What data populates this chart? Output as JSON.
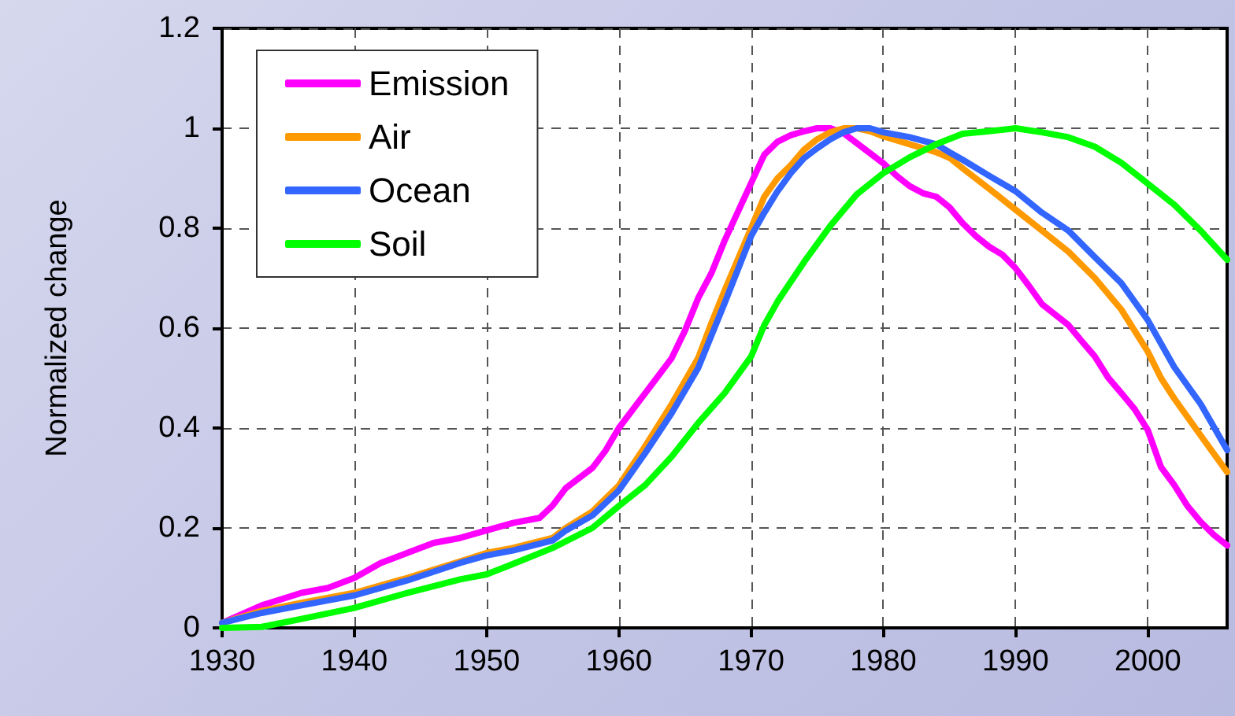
{
  "chart_data": {
    "type": "line",
    "ylabel": "Normalized change",
    "xlim": [
      1930,
      2006
    ],
    "xticks": [
      1930,
      1940,
      1950,
      1960,
      1970,
      1980,
      1990,
      2000
    ],
    "ylim": [
      0,
      1.2
    ],
    "yticks": [
      0,
      0.2,
      0.4,
      0.6,
      0.8,
      1,
      1.2
    ],
    "grid": true,
    "legend": "top left",
    "marker": "none",
    "line_style": "solid",
    "series": [
      {
        "name": "Emission",
        "color": "#ff00ff",
        "x": [
          1930,
          1933,
          1936,
          1938,
          1940,
          1942,
          1944,
          1946,
          1948,
          1950,
          1952,
          1954,
          1955,
          1956,
          1958,
          1959,
          1960,
          1962,
          1964,
          1965,
          1966,
          1967,
          1968,
          1970,
          1971,
          1972,
          1973,
          1974,
          1975,
          1976,
          1977,
          1978,
          1979,
          1980,
          1981,
          1982,
          1983,
          1984,
          1985,
          1986,
          1987,
          1988,
          1989,
          1990,
          1991,
          1992,
          1993,
          1994,
          1995,
          1996,
          1997,
          1998,
          1999,
          2000,
          2001,
          2002,
          2003,
          2004,
          2005,
          2006
        ],
        "values": [
          0.01,
          0.045,
          0.07,
          0.08,
          0.1,
          0.13,
          0.15,
          0.17,
          0.18,
          0.195,
          0.21,
          0.22,
          0.245,
          0.28,
          0.32,
          0.355,
          0.4,
          0.47,
          0.54,
          0.595,
          0.66,
          0.71,
          0.775,
          0.89,
          0.947,
          0.973,
          0.986,
          0.994,
          1,
          1,
          0.99,
          0.97,
          0.95,
          0.93,
          0.905,
          0.884,
          0.87,
          0.863,
          0.842,
          0.81,
          0.784,
          0.763,
          0.747,
          0.72,
          0.685,
          0.648,
          0.627,
          0.606,
          0.574,
          0.543,
          0.501,
          0.47,
          0.438,
          0.396,
          0.322,
          0.286,
          0.244,
          0.212,
          0.186,
          0.165
        ]
      },
      {
        "name": "Air",
        "color": "#ff9900",
        "x": [
          1930,
          1933,
          1936,
          1940,
          1944,
          1948,
          1950,
          1952,
          1955,
          1956,
          1958,
          1960,
          1962,
          1964,
          1966,
          1967,
          1968,
          1970,
          1971,
          1972,
          1973,
          1974,
          1975,
          1976,
          1977,
          1978,
          1979,
          1980,
          1982,
          1984,
          1985,
          1986,
          1988,
          1990,
          1992,
          1994,
          1996,
          1998,
          2000,
          2001,
          2002,
          2004,
          2006
        ],
        "values": [
          0.01,
          0.034,
          0.05,
          0.07,
          0.1,
          0.133,
          0.15,
          0.16,
          0.18,
          0.2,
          0.233,
          0.285,
          0.364,
          0.448,
          0.54,
          0.61,
          0.675,
          0.8,
          0.863,
          0.9,
          0.926,
          0.957,
          0.978,
          0.992,
          1,
          1,
          0.994,
          0.984,
          0.968,
          0.952,
          0.941,
          0.92,
          0.879,
          0.837,
          0.795,
          0.753,
          0.7,
          0.637,
          0.553,
          0.5,
          0.459,
          0.385,
          0.312
        ]
      },
      {
        "name": "Ocean",
        "color": "#3366ff",
        "x": [
          1930,
          1933,
          1936,
          1940,
          1944,
          1948,
          1950,
          1952,
          1955,
          1956,
          1958,
          1960,
          1962,
          1964,
          1966,
          1968,
          1970,
          1971,
          1972,
          1973,
          1974,
          1975,
          1976,
          1977,
          1978,
          1979,
          1980,
          1982,
          1984,
          1985,
          1986,
          1988,
          1990,
          1992,
          1994,
          1996,
          1998,
          2000,
          2002,
          2004,
          2006
        ],
        "values": [
          0.01,
          0.03,
          0.045,
          0.065,
          0.095,
          0.13,
          0.145,
          0.155,
          0.175,
          0.195,
          0.225,
          0.275,
          0.35,
          0.43,
          0.52,
          0.65,
          0.784,
          0.831,
          0.874,
          0.91,
          0.94,
          0.96,
          0.978,
          0.992,
          1,
          1,
          0.992,
          0.982,
          0.968,
          0.952,
          0.937,
          0.905,
          0.874,
          0.831,
          0.795,
          0.742,
          0.69,
          0.616,
          0.522,
          0.448,
          0.356
        ]
      },
      {
        "name": "Soil",
        "color": "#00ff00",
        "x": [
          1930,
          1933,
          1936,
          1940,
          1944,
          1948,
          1950,
          1952,
          1955,
          1958,
          1960,
          1962,
          1964,
          1966,
          1968,
          1970,
          1971,
          1972,
          1974,
          1976,
          1978,
          1980,
          1982,
          1984,
          1986,
          1988,
          1990,
          1992,
          1994,
          1996,
          1998,
          2000,
          2002,
          2004,
          2006
        ],
        "values": [
          0,
          0.002,
          0.018,
          0.04,
          0.07,
          0.097,
          0.107,
          0.128,
          0.16,
          0.2,
          0.244,
          0.286,
          0.343,
          0.41,
          0.47,
          0.543,
          0.606,
          0.653,
          0.732,
          0.805,
          0.868,
          0.91,
          0.942,
          0.968,
          0.989,
          0.994,
          1,
          0.992,
          0.982,
          0.963,
          0.931,
          0.889,
          0.847,
          0.795,
          0.737
        ]
      }
    ]
  }
}
